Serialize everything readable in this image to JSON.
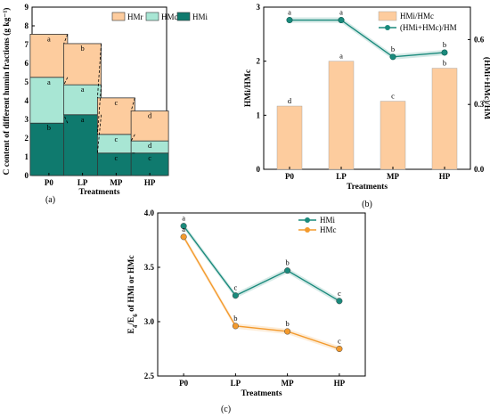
{
  "chart_data": [
    {
      "panel": "(a)",
      "type": "bar",
      "stacked": true,
      "categories": [
        "P0",
        "LP",
        "MP",
        "HP"
      ],
      "xlabel": "Treatments",
      "ylabel": "C content of different humin fractions (g kg⁻¹)",
      "ylim": [
        0,
        9
      ],
      "yticks": [
        0,
        1,
        2,
        3,
        4,
        5,
        6,
        7,
        8,
        9
      ],
      "legend_position": "top-right",
      "series": [
        {
          "name": "HMi",
          "color": "#0f7a6e",
          "values": [
            2.8,
            3.25,
            1.2,
            1.2
          ],
          "letters": [
            "b",
            "a",
            "c",
            "c"
          ]
        },
        {
          "name": "HMc",
          "color": "#a8e6d4",
          "values": [
            2.45,
            1.6,
            1.0,
            0.65
          ],
          "letters": [
            "a",
            "a",
            "c",
            "d"
          ]
        },
        {
          "name": "HMr",
          "color": "#fdcc9e",
          "values": [
            2.3,
            2.2,
            1.95,
            1.6
          ],
          "letters": [
            "a",
            "b",
            "c",
            "d"
          ]
        }
      ],
      "legend_order": [
        "HMr",
        "HMc",
        "HMi"
      ]
    },
    {
      "panel": "(b)",
      "type": "bar",
      "categories": [
        "P0",
        "LP",
        "MP",
        "HP"
      ],
      "xlabel": "Treatments",
      "ylabel": "HMi/HMc",
      "ylim": [
        0,
        3
      ],
      "yticks": [
        0,
        1,
        2,
        3
      ],
      "y2label": "(HMi+HMc)/HM",
      "y2lim": [
        0,
        0.75
      ],
      "y2ticks": [
        "0.0",
        "0.3",
        "0.6"
      ],
      "legend_position": "top-right",
      "series": [
        {
          "name": "HMi/HMc",
          "type": "bar",
          "color": "#fdcc9e",
          "values": [
            1.17,
            2.0,
            1.26,
            1.87
          ],
          "letters": [
            "d",
            "a",
            "c",
            "b"
          ]
        },
        {
          "name": "(HMi+HMc)/HM",
          "type": "line",
          "axis": "right",
          "color": "#1a8a7c",
          "values": [
            0.69,
            0.69,
            0.52,
            0.54
          ],
          "letters": [
            "a",
            "a",
            "b",
            "b"
          ]
        }
      ]
    },
    {
      "panel": "(c)",
      "type": "line",
      "categories": [
        "P0",
        "LP",
        "MP",
        "HP"
      ],
      "xlabel": "Treatments",
      "ylabel": "E4/E6 of HMi or HMc",
      "ylim": [
        2.5,
        4.0
      ],
      "yticks": [
        "2.5",
        "3.0",
        "3.5",
        "4.0"
      ],
      "legend_position": "top-right",
      "series": [
        {
          "name": "HMi",
          "color": "#1a8a7c",
          "values": [
            3.88,
            3.24,
            3.47,
            3.19
          ],
          "letters": [
            "a",
            "c",
            "b",
            "c"
          ]
        },
        {
          "name": "HMc",
          "color": "#f39a2d",
          "values": [
            3.78,
            2.96,
            2.91,
            2.75
          ],
          "letters": [
            "a",
            "b",
            "b",
            "c"
          ]
        }
      ]
    }
  ]
}
